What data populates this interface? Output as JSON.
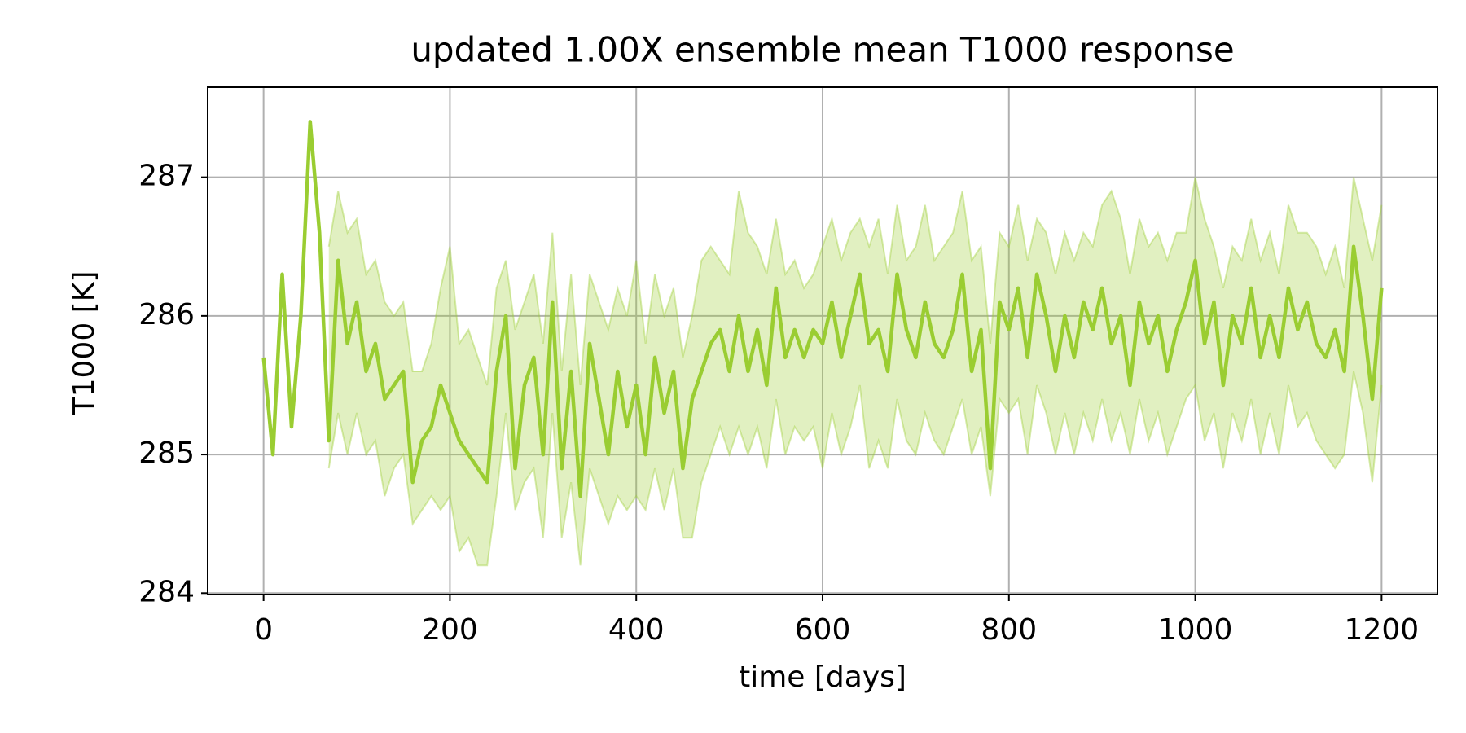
{
  "chart_data": {
    "type": "line",
    "title": "updated 1.00X ensemble mean T1000 response",
    "x_label": "time [days]",
    "y_label": "T1000 [K]",
    "xlim": [
      -60,
      1260
    ],
    "ylim": [
      283.99,
      287.65
    ],
    "xticks": [
      0,
      200,
      400,
      600,
      800,
      1000,
      1200
    ],
    "yticks": [
      284,
      285,
      286,
      287
    ],
    "grid": true,
    "x": [
      0,
      10,
      20,
      30,
      40,
      50,
      60,
      70,
      80,
      90,
      100,
      110,
      120,
      130,
      140,
      150,
      160,
      170,
      180,
      190,
      200,
      210,
      220,
      230,
      240,
      250,
      260,
      270,
      280,
      290,
      300,
      310,
      320,
      330,
      340,
      350,
      360,
      370,
      380,
      390,
      400,
      410,
      420,
      430,
      440,
      450,
      460,
      470,
      480,
      490,
      500,
      510,
      520,
      530,
      540,
      550,
      560,
      570,
      580,
      590,
      600,
      610,
      620,
      630,
      640,
      650,
      660,
      670,
      680,
      690,
      700,
      710,
      720,
      730,
      740,
      750,
      760,
      770,
      780,
      790,
      800,
      810,
      820,
      830,
      840,
      850,
      860,
      870,
      880,
      890,
      900,
      910,
      920,
      930,
      940,
      950,
      960,
      970,
      980,
      990,
      1000,
      1010,
      1020,
      1030,
      1040,
      1050,
      1060,
      1070,
      1080,
      1090,
      1100,
      1110,
      1120,
      1130,
      1140,
      1150,
      1160,
      1170,
      1180,
      1190,
      1200
    ],
    "mean": {
      "color": "#9acd32",
      "values": [
        285.7,
        285.0,
        286.3,
        285.2,
        286.0,
        287.4,
        286.6,
        285.1,
        286.4,
        285.8,
        286.1,
        285.6,
        285.8,
        285.4,
        285.5,
        285.6,
        284.8,
        285.1,
        285.2,
        285.5,
        285.3,
        285.1,
        285.0,
        284.9,
        284.8,
        285.6,
        286.0,
        284.9,
        285.5,
        285.7,
        285.0,
        286.1,
        284.9,
        285.6,
        284.7,
        285.8,
        285.4,
        285.0,
        285.6,
        285.2,
        285.5,
        285.0,
        285.7,
        285.3,
        285.6,
        284.9,
        285.4,
        285.6,
        285.8,
        285.9,
        285.6,
        286.0,
        285.6,
        285.9,
        285.5,
        286.2,
        285.7,
        285.9,
        285.7,
        285.9,
        285.8,
        286.1,
        285.7,
        286.0,
        286.3,
        285.8,
        285.9,
        285.6,
        286.3,
        285.9,
        285.7,
        286.1,
        285.8,
        285.7,
        285.9,
        286.3,
        285.6,
        285.9,
        284.9,
        286.1,
        285.9,
        286.2,
        285.7,
        286.3,
        286.0,
        285.6,
        286.0,
        285.7,
        286.1,
        285.9,
        286.2,
        285.8,
        286.0,
        285.5,
        286.1,
        285.8,
        286.0,
        285.6,
        285.9,
        286.1,
        286.4,
        285.8,
        286.1,
        285.5,
        286.0,
        285.8,
        286.2,
        285.7,
        286.0,
        285.7,
        286.2,
        285.9,
        286.1,
        285.8,
        285.7,
        285.9,
        285.6,
        286.5,
        286.0,
        285.4,
        286.2
      ]
    },
    "band": {
      "color": "#9acd32",
      "lower": [
        null,
        null,
        null,
        null,
        null,
        null,
        null,
        284.9,
        285.3,
        285.0,
        285.3,
        285.0,
        285.1,
        284.7,
        284.9,
        285.0,
        284.5,
        284.6,
        284.7,
        284.6,
        284.7,
        284.3,
        284.4,
        284.2,
        284.2,
        284.7,
        285.3,
        284.6,
        284.8,
        284.9,
        284.4,
        285.3,
        284.4,
        284.8,
        284.2,
        284.9,
        284.7,
        284.5,
        284.7,
        284.6,
        284.7,
        284.6,
        284.9,
        284.6,
        284.9,
        284.4,
        284.4,
        284.8,
        285.0,
        285.2,
        285.0,
        285.2,
        285.0,
        285.2,
        284.9,
        285.4,
        285.0,
        285.2,
        285.1,
        285.2,
        284.9,
        285.3,
        285.0,
        285.2,
        285.5,
        284.9,
        285.1,
        284.9,
        285.4,
        285.1,
        285.0,
        285.3,
        285.1,
        285.0,
        285.2,
        285.4,
        285.0,
        285.2,
        284.7,
        285.4,
        285.3,
        285.4,
        285.0,
        285.5,
        285.3,
        285.0,
        285.3,
        285.0,
        285.3,
        285.1,
        285.4,
        285.1,
        285.3,
        285.0,
        285.4,
        285.1,
        285.3,
        285.0,
        285.2,
        285.4,
        285.5,
        285.1,
        285.3,
        284.9,
        285.3,
        285.1,
        285.4,
        285.0,
        285.3,
        285.0,
        285.5,
        285.2,
        285.3,
        285.1,
        285.0,
        284.9,
        285.0,
        285.6,
        285.3,
        284.8,
        285.5
      ],
      "upper": [
        null,
        null,
        null,
        null,
        null,
        null,
        null,
        286.5,
        286.9,
        286.6,
        286.7,
        286.3,
        286.4,
        286.1,
        286.0,
        286.1,
        285.6,
        285.6,
        285.8,
        286.2,
        286.5,
        285.8,
        285.9,
        285.7,
        285.5,
        286.2,
        286.4,
        285.9,
        286.1,
        286.3,
        285.8,
        286.6,
        285.6,
        286.3,
        285.5,
        286.3,
        286.1,
        285.9,
        286.2,
        286.0,
        286.4,
        285.8,
        286.3,
        286.0,
        286.2,
        285.7,
        286.0,
        286.4,
        286.5,
        286.4,
        286.3,
        286.9,
        286.6,
        286.5,
        286.3,
        286.7,
        286.3,
        286.4,
        286.2,
        286.3,
        286.5,
        286.7,
        286.4,
        286.6,
        286.7,
        286.5,
        286.7,
        286.3,
        286.8,
        286.4,
        286.5,
        286.8,
        286.4,
        286.5,
        286.6,
        286.9,
        286.4,
        286.5,
        285.8,
        286.6,
        286.5,
        286.8,
        286.4,
        286.7,
        286.6,
        286.3,
        286.6,
        286.4,
        286.6,
        286.5,
        286.8,
        286.9,
        286.7,
        286.3,
        286.7,
        286.5,
        286.6,
        286.4,
        286.6,
        286.6,
        287.0,
        286.7,
        286.5,
        286.2,
        286.5,
        286.4,
        286.7,
        286.4,
        286.6,
        286.3,
        286.8,
        286.6,
        286.6,
        286.5,
        286.3,
        286.5,
        286.2,
        287.0,
        286.7,
        286.4,
        286.8
      ]
    }
  }
}
